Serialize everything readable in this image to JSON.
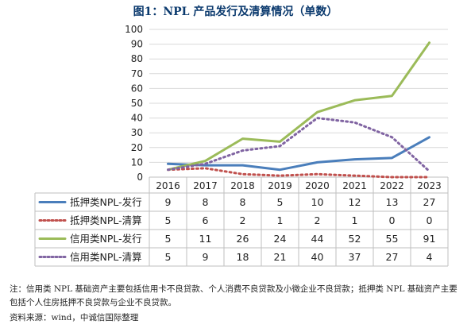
{
  "title": "图1：NPL 产品发行及清算情况（单数）",
  "note": "注：信用类 NPL 基础资产主要包括信用卡不良贷款、个人消费不良贷款及小微企业不良贷款；抵押类 NPL 基础资产主要包括个人住房抵押不良贷款与企业不良贷款。",
  "source": "资料来源：wind，中诚信国际整理",
  "chart_data": {
    "type": "line",
    "title": "图1：NPL 产品发行及清算情况（单数）",
    "xlabel": "",
    "ylabel": "",
    "categories": [
      "2016",
      "2017",
      "2018",
      "2019",
      "2020",
      "2021",
      "2022",
      "2023"
    ],
    "ylim": [
      0,
      100
    ],
    "yticks": [
      0,
      10,
      20,
      30,
      40,
      50,
      60,
      70,
      80,
      90,
      100
    ],
    "grid": true,
    "legend": "data table below chart",
    "series": [
      {
        "name": "抵押类NPL-发行",
        "values": [
          9,
          8,
          8,
          5,
          10,
          12,
          13,
          27
        ],
        "color": "#4a7ebb",
        "dash": "solid"
      },
      {
        "name": "抵押类NPL-清算",
        "values": [
          5,
          6,
          2,
          1,
          2,
          1,
          0,
          0
        ],
        "color": "#c0504d",
        "dash": "dotted"
      },
      {
        "name": "信用类NPL-发行",
        "values": [
          5,
          11,
          26,
          24,
          44,
          52,
          55,
          91
        ],
        "color": "#9bbb59",
        "dash": "solid"
      },
      {
        "name": "信用类NPL-清算",
        "values": [
          5,
          9,
          18,
          21,
          40,
          37,
          27,
          4
        ],
        "color": "#8064a2",
        "dash": "dotted"
      }
    ]
  }
}
